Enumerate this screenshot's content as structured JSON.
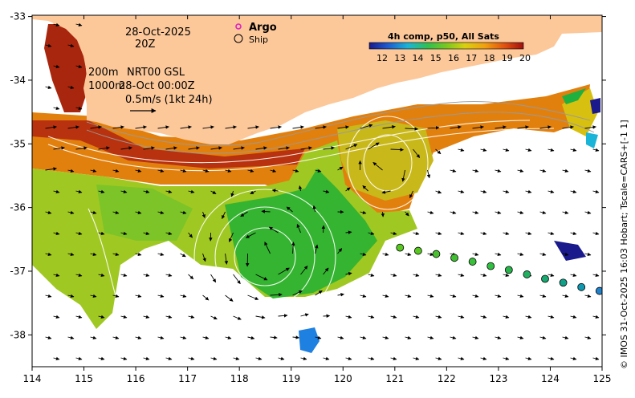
{
  "map": {
    "date": "28-Oct-2025",
    "time": "20Z",
    "depth_note_1": "200m",
    "product": "NRT00 GSL",
    "depth_note_2": "1000m",
    "analysis_time": "28-Oct 00:00Z",
    "vector_scale_label": "0.5m/s (1kt 24h)",
    "argo_label": "Argo",
    "ship_label": "Ship",
    "colorbar_title": "4h comp, p50, All Sats",
    "colorbar_ticks": [
      "12",
      "13",
      "14",
      "15",
      "16",
      "17",
      "18",
      "19",
      "20"
    ],
    "credit": "© IMOS 31-Oct-2025 16:03 Hobart; Tscale=CARS+[-1 1]",
    "lon_ticks": [
      "114",
      "115",
      "116",
      "117",
      "118",
      "119",
      "120",
      "121",
      "122",
      "123",
      "124",
      "125"
    ],
    "lat_ticks": [
      "-33",
      "-34",
      "-35",
      "-36",
      "-37",
      "-38"
    ]
  },
  "colors": {
    "land": "#fcc89a",
    "sst_warm": "#e2780e",
    "sst_hot": "#b02a10",
    "sst_mid": "#a8c81c",
    "sst_cool": "#28b428",
    "argo": "#e020c0"
  },
  "ship_track": [
    {
      "lon": 121.1,
      "lat": -36.63,
      "color": "#58c820"
    },
    {
      "lon": 121.45,
      "lat": -36.68,
      "color": "#58c820"
    },
    {
      "lon": 121.8,
      "lat": -36.73,
      "color": "#48c030"
    },
    {
      "lon": 122.15,
      "lat": -36.79,
      "color": "#40c030"
    },
    {
      "lon": 122.5,
      "lat": -36.85,
      "color": "#38c038"
    },
    {
      "lon": 122.85,
      "lat": -36.92,
      "color": "#30c040"
    },
    {
      "lon": 123.2,
      "lat": -36.98,
      "color": "#28b448"
    },
    {
      "lon": 123.55,
      "lat": -37.05,
      "color": "#20b060"
    },
    {
      "lon": 123.9,
      "lat": -37.12,
      "color": "#18a870"
    },
    {
      "lon": 124.25,
      "lat": -37.18,
      "color": "#10a088"
    },
    {
      "lon": 124.6,
      "lat": -37.25,
      "color": "#1098b0"
    },
    {
      "lon": 124.95,
      "lat": -37.31,
      "color": "#2080c8"
    }
  ]
}
